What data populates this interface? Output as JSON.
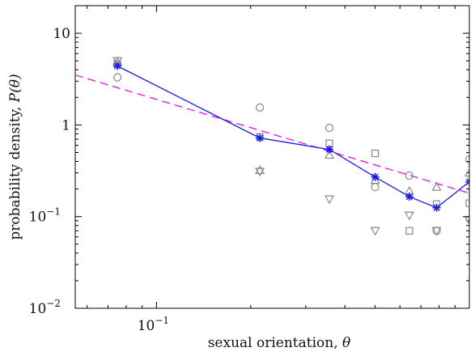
{
  "chart_data": {
    "type": "scatter",
    "xlabel_prefix": "sexual orientation, ",
    "xlabel_symbol": "θ",
    "ylabel_prefix": "probability density, ",
    "ylabel_symbol": "P(θ)",
    "x_scale": "log",
    "y_scale": "log",
    "xlim": [
      0.055,
      1.0
    ],
    "ylim": [
      0.01,
      20
    ],
    "x_ticks": [
      {
        "value": 0.1,
        "base": "10",
        "exp": "−1"
      }
    ],
    "y_ticks": [
      {
        "value": 10,
        "text": "10"
      },
      {
        "value": 1,
        "text": "1"
      },
      {
        "value": 0.1,
        "base": "10",
        "exp": "−1"
      },
      {
        "value": 0.01,
        "base": "10",
        "exp": "−2"
      }
    ],
    "series": [
      {
        "marker": "circle",
        "x": [
          0.075,
          0.214,
          0.357,
          0.5,
          0.643,
          0.786,
          1.0
        ],
        "y": [
          3.3,
          1.55,
          0.93,
          0.21,
          0.28,
          0.07,
          0.42
        ]
      },
      {
        "marker": "square",
        "x": [
          0.075,
          0.214,
          0.357,
          0.5,
          0.643,
          0.786,
          1.0
        ],
        "y": [
          4.6,
          0.74,
          0.63,
          0.49,
          0.07,
          0.137,
          0.14
        ]
      },
      {
        "marker": "triangle-up",
        "x": [
          0.075,
          0.214,
          0.357,
          0.5,
          0.643,
          0.786,
          1.0
        ],
        "y": [
          4.9,
          0.32,
          0.47,
          0.25,
          0.19,
          0.21,
          0.3
        ]
      },
      {
        "marker": "triangle-down",
        "x": [
          0.075,
          0.214,
          0.357,
          0.5,
          0.643,
          0.786,
          1.0
        ],
        "y": [
          5.0,
          0.31,
          0.155,
          0.07,
          0.103,
          0.07,
          0.09
        ]
      },
      {
        "marker": "star",
        "x": [
          0.075,
          0.214,
          0.357,
          0.5,
          0.643,
          0.786,
          1.0
        ],
        "y": [
          4.4,
          0.72,
          0.54,
          0.27,
          0.165,
          0.125,
          0.24
        ],
        "color": "#1a1ae6",
        "line": true
      }
    ],
    "fit": {
      "x": [
        0.055,
        1.0
      ],
      "y": [
        3.5,
        0.18
      ],
      "color": "#e61ae6",
      "style": "dashed"
    },
    "grid": false
  }
}
